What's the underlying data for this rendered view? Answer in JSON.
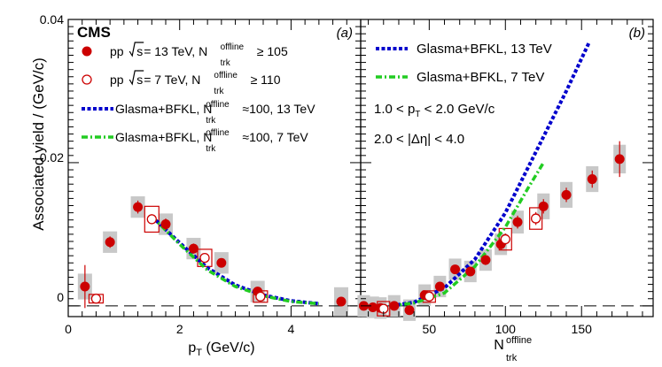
{
  "colors": {
    "data": "#cc0000",
    "syst_box": "#c8c8c8",
    "glasma13": "#0000cc",
    "glasma7": "#22cc22",
    "zero_line": "#000000"
  },
  "figure": {
    "y_axis_label": "Associated yield / (GeV/c)",
    "y_tick_labels": [
      "0",
      "0.02",
      "0.04"
    ]
  },
  "chart_data": [
    {
      "type": "scatter",
      "panel_label": "(a)",
      "experiment_label": "CMS",
      "xlabel": "p",
      "xlabel_sub": "T",
      "xlabel_unit": " (GeV/c)",
      "ylabel": "Associated yield / (GeV/c)",
      "xlim": [
        0,
        5.25
      ],
      "ylim": [
        -0.0015,
        0.04
      ],
      "x_ticks": [
        0,
        2,
        4
      ],
      "x_tick_labels": [
        "0",
        "2",
        "4"
      ],
      "y_ticks": [
        0,
        0.02,
        0.04
      ],
      "grid": false,
      "legend": {
        "placement": "top-left",
        "entries": [
          {
            "marker": "filled-circle",
            "pre": "pp ",
            "sqrt_s": "s",
            "mid": " = 13 TeV, N",
            "sup": "offline",
            "sub": "trk",
            "post": " ≥  105"
          },
          {
            "marker": "open-circle",
            "pre": "pp ",
            "sqrt_s": "s",
            "mid": " = 7 TeV, N",
            "sup": "offline",
            "sub": "trk",
            "post": " ≥  110"
          },
          {
            "marker": "line-dotted-blue",
            "pre": "Glasma+BFKL, N",
            "sup": "offline",
            "sub": "trk",
            "post": "≈100, 13 TeV"
          },
          {
            "marker": "line-dashdot-green",
            "pre": "Glasma+BFKL, N",
            "sup": "offline",
            "sub": "trk",
            "post": "≈100, 7 TeV"
          }
        ]
      },
      "series": [
        {
          "name": "pp √s = 13 TeV",
          "marker": "filled-circle",
          "x": [
            0.3,
            0.75,
            1.25,
            1.75,
            2.25,
            2.75,
            3.4,
            4.9
          ],
          "y": [
            0.0027,
            0.0089,
            0.0138,
            0.0114,
            0.008,
            0.006,
            0.002,
            0.0006
          ],
          "err": [
            0.003,
            0.0008,
            0.0009,
            0.0008,
            0.0007,
            0.0006,
            0.0006,
            0.0006
          ],
          "syst": [
            0.0018,
            0.0015,
            0.0015,
            0.0015,
            0.0015,
            0.0015,
            0.0015,
            0.002
          ]
        },
        {
          "name": "pp √s = 7 TeV",
          "marker": "open-circle",
          "x": [
            0.5,
            1.5,
            2.45,
            3.45
          ],
          "y": [
            0.001,
            0.0121,
            0.0067,
            0.0013
          ],
          "err": [
            0.0004,
            0.0007,
            0.0006,
            0.0004
          ],
          "syst": [
            0.0006,
            0.0018,
            0.0012,
            0.0008
          ]
        }
      ],
      "curves": [
        {
          "name": "Glasma+BFKL 13 TeV",
          "style": "dotted",
          "x": [
            1.5,
            2.0,
            2.5,
            3.0,
            3.5,
            4.0,
            4.5
          ],
          "y": [
            0.0125,
            0.0088,
            0.0053,
            0.0029,
            0.0015,
            0.0007,
            0.0003
          ]
        },
        {
          "name": "Glasma+BFKL 7 TeV",
          "style": "dashdot",
          "x": [
            1.5,
            2.0,
            2.5,
            3.0,
            3.5,
            4.0,
            4.5
          ],
          "y": [
            0.0125,
            0.0086,
            0.005,
            0.0027,
            0.0014,
            0.0006,
            0.0003
          ]
        }
      ]
    },
    {
      "type": "scatter",
      "panel_label": "(b)",
      "xlabel": "N",
      "xlabel_sup": "offline",
      "xlabel_sub": "trk",
      "xlim": [
        5,
        197
      ],
      "ylim": [
        -0.0015,
        0.04
      ],
      "x_ticks": [
        50,
        100,
        150
      ],
      "x_tick_labels": [
        "50",
        "100",
        "150"
      ],
      "grid": false,
      "legend": {
        "placement": "top",
        "entries": [
          {
            "marker": "line-dotted-blue",
            "label": "Glasma+BFKL, 13 TeV"
          },
          {
            "marker": "line-dashdot-green",
            "label": "Glasma+BFKL,  7 TeV"
          }
        ]
      },
      "annotations": [
        {
          "pre": "1.0 < p",
          "sub": "T",
          "post": " < 2.0 GeV/c"
        },
        {
          "pre": "2.0 < |Δη| < 4.0"
        }
      ],
      "series": [
        {
          "name": "pp √s = 13 TeV",
          "marker": "filled-circle",
          "x": [
            7,
            13,
            18,
            27,
            37,
            47,
            57,
            67,
            77,
            87,
            97,
            108,
            125,
            140,
            157,
            175
          ],
          "y": [
            0.0,
            -0.0002,
            -0.0003,
            0.0,
            -0.0006,
            0.0015,
            0.0027,
            0.0051,
            0.0048,
            0.0064,
            0.0086,
            0.0117,
            0.0139,
            0.0155,
            0.0177,
            0.0205
          ],
          "err": [
            0.0005,
            0.0005,
            0.0005,
            0.0005,
            0.0005,
            0.0005,
            0.0006,
            0.0006,
            0.0006,
            0.0007,
            0.0008,
            0.0009,
            0.001,
            0.001,
            0.0012,
            0.0025
          ],
          "syst": [
            0.0015,
            0.0015,
            0.0015,
            0.0015,
            0.0015,
            0.0015,
            0.0015,
            0.0015,
            0.0015,
            0.0015,
            0.0015,
            0.0016,
            0.0018,
            0.0018,
            0.0018,
            0.002
          ]
        },
        {
          "name": "pp √s = 7 TeV",
          "marker": "open-circle",
          "x": [
            20,
            50,
            100,
            120
          ],
          "y": [
            -0.0004,
            0.0013,
            0.0093,
            0.0122
          ],
          "err": [
            0.0005,
            0.0005,
            0.0008,
            0.0009
          ],
          "syst": [
            0.001,
            0.0008,
            0.0015,
            0.0015
          ]
        }
      ],
      "curves": [
        {
          "name": "Glasma+BFKL, 13 TeV",
          "style": "dotted",
          "x": [
            25,
            40,
            60,
            80,
            100,
            120,
            140,
            155
          ],
          "y": [
            0.0,
            0.0005,
            0.0025,
            0.0065,
            0.013,
            0.0215,
            0.03,
            0.0368
          ]
        },
        {
          "name": "Glasma+BFKL,  7 TeV",
          "style": "dashdot",
          "x": [
            25,
            40,
            60,
            80,
            100,
            115,
            125
          ],
          "y": [
            0.0,
            0.0004,
            0.0018,
            0.0055,
            0.011,
            0.0165,
            0.02
          ]
        }
      ]
    }
  ]
}
